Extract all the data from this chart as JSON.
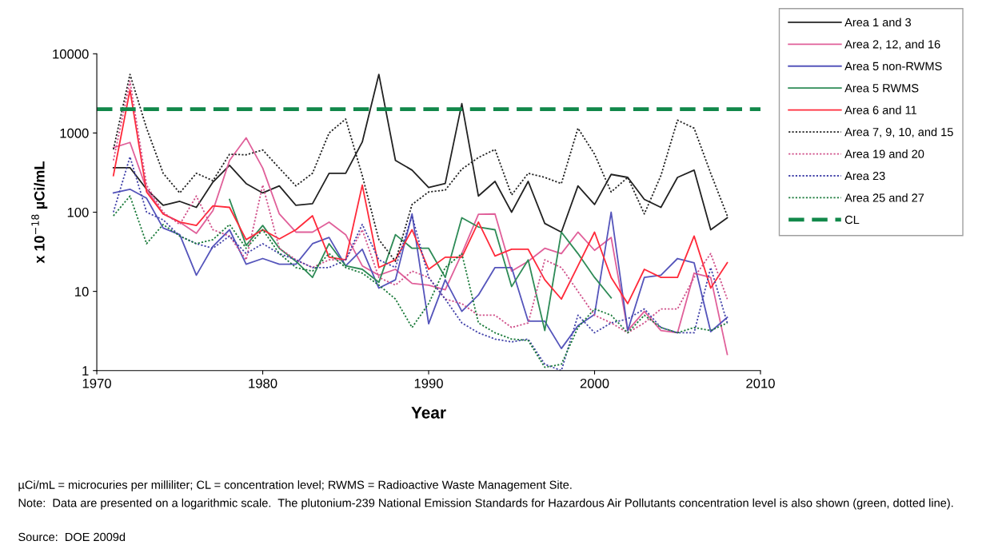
{
  "chart_data": {
    "type": "line",
    "xlabel": "Year",
    "ylabel": "x 10$^{−18}$ µCi/mL",
    "x": [
      1971,
      1972,
      1973,
      1974,
      1975,
      1976,
      1977,
      1978,
      1979,
      1980,
      1981,
      1982,
      1983,
      1984,
      1985,
      1986,
      1987,
      1988,
      1989,
      1990,
      1991,
      1992,
      1993,
      1994,
      1995,
      1996,
      1997,
      1998,
      1999,
      2000,
      2001,
      2002,
      2003,
      2004,
      2005,
      2006,
      2007,
      2008
    ],
    "series": [
      {
        "name": "Area 1 and 3",
        "color": "#222222",
        "line_style": "solid",
        "values": [
          365,
          365,
          195,
          122,
          137,
          115,
          240,
          390,
          230,
          175,
          215,
          122,
          128,
          310,
          310,
          770,
          5500,
          450,
          340,
          205,
          230,
          2350,
          160,
          245,
          100,
          245,
          72,
          56,
          215,
          125,
          300,
          275,
          145,
          115,
          275,
          340,
          60,
          85
        ]
      },
      {
        "name": "Area 2, 12, and 16",
        "color": "#e0609a",
        "line_style": "solid",
        "values": [
          650,
          760,
          195,
          95,
          75,
          54,
          105,
          450,
          870,
          360,
          95,
          56,
          56,
          75,
          52,
          21,
          16,
          19,
          12.6,
          12,
          10.5,
          30,
          94,
          95,
          18,
          24,
          35,
          30,
          56,
          33,
          48,
          3.2,
          5.6,
          3.2,
          3,
          17,
          15,
          1.6
        ]
      },
      {
        "name": "Area 5 non-RWMS",
        "color": "#5555bb",
        "line_style": "solid",
        "values": [
          175,
          195,
          150,
          63,
          52,
          16,
          37,
          60,
          22,
          26,
          22,
          22,
          40,
          48,
          21,
          34,
          11,
          14,
          95,
          3.9,
          14,
          5.6,
          9,
          20,
          20,
          4.2,
          4.2,
          1.9,
          3.7,
          5.1,
          100,
          3.2,
          15,
          16,
          26,
          23,
          3.1,
          4.7
        ]
      },
      {
        "name": "Area 5 RWMS",
        "color": "#2e8b57",
        "line_style": "solid",
        "values": [
          null,
          null,
          null,
          null,
          null,
          null,
          null,
          145,
          38,
          68,
          35,
          24,
          15,
          40,
          21,
          19,
          13,
          52,
          35,
          35,
          15,
          85,
          65,
          60,
          11.5,
          25,
          3.2,
          56,
          30,
          15,
          8.3,
          null,
          null,
          null,
          null,
          null,
          null,
          null
        ]
      },
      {
        "name": "Area 6 and 11",
        "color": "#ff2a3a",
        "line_style": "solid",
        "values": [
          290,
          3500,
          180,
          95,
          75,
          68,
          120,
          115,
          45,
          60,
          46,
          60,
          90,
          27,
          25,
          220,
          20,
          25,
          60,
          19,
          27,
          27,
          75,
          28,
          34,
          34,
          14,
          8,
          21,
          56,
          15,
          7,
          19,
          15,
          15,
          50,
          11,
          23
        ]
      },
      {
        "name": "Area 7, 9, 10, and 15",
        "color": "#222222",
        "line_style": "dotted",
        "values": [
          620,
          5500,
          1150,
          310,
          175,
          310,
          250,
          540,
          530,
          610,
          360,
          215,
          310,
          1000,
          1500,
          290,
          45,
          24,
          125,
          180,
          190,
          350,
          490,
          620,
          165,
          310,
          275,
          230,
          1150,
          540,
          180,
          275,
          95,
          290,
          1450,
          1150,
          310,
          90
        ]
      },
      {
        "name": "Area 19 and 20",
        "color": "#d0508a",
        "line_style": "dotted",
        "values": [
          450,
          4500,
          220,
          100,
          70,
          160,
          60,
          50,
          25,
          220,
          35,
          25,
          20,
          25,
          25,
          60,
          15,
          12,
          18,
          15,
          8,
          7,
          5,
          5,
          3.5,
          4,
          25,
          20,
          10,
          5,
          4,
          3,
          4,
          6,
          6,
          15,
          30,
          8
        ]
      },
      {
        "name": "Area 23",
        "color": "#4444aa",
        "line_style": "dotted",
        "values": [
          100,
          500,
          100,
          80,
          50,
          40,
          35,
          50,
          30,
          40,
          30,
          25,
          20,
          20,
          25,
          70,
          25,
          20,
          90,
          15,
          8,
          4,
          3,
          2.5,
          2.3,
          2.5,
          1.2,
          1,
          5,
          3,
          4,
          4.5,
          6,
          3.5,
          3,
          3,
          20,
          4
        ]
      },
      {
        "name": "Area 25 and 27",
        "color": "#1a7a3a",
        "line_style": "dotted",
        "values": [
          90,
          160,
          40,
          70,
          50,
          40,
          45,
          70,
          35,
          60,
          30,
          20,
          18,
          30,
          20,
          17,
          12,
          8,
          3.5,
          7,
          20,
          30,
          4,
          3,
          2.5,
          2.4,
          1.1,
          1.2,
          3.5,
          6,
          5,
          3,
          5,
          3.5,
          3,
          3.5,
          3.2,
          4
        ]
      }
    ],
    "ref_lines": [
      {
        "axis": "y",
        "value": 2000,
        "label": "CL",
        "color": "#11884a",
        "line_style": "dashed"
      }
    ],
    "log": "y",
    "xlim": [
      1970,
      2010
    ],
    "xticks": [
      1970,
      1980,
      1990,
      2000,
      2010
    ],
    "ylim": [
      1,
      10000
    ],
    "yticks": [
      1,
      10,
      100,
      1000,
      10000
    ],
    "grid": false,
    "legend": "right",
    "marker": "none",
    "annotations": [
      "µCi/mL = microcuries per milliliter; CL = concentration level; RWMS = Radioactive Waste Management Site.",
      "Note:  Data are presented on a logarithmic scale.  The plutonium-239 National Emission Standards for Hazardous Air Pollutants concentration level is also shown (green, dotted line).",
      "Source:  DOE 2009d"
    ]
  }
}
